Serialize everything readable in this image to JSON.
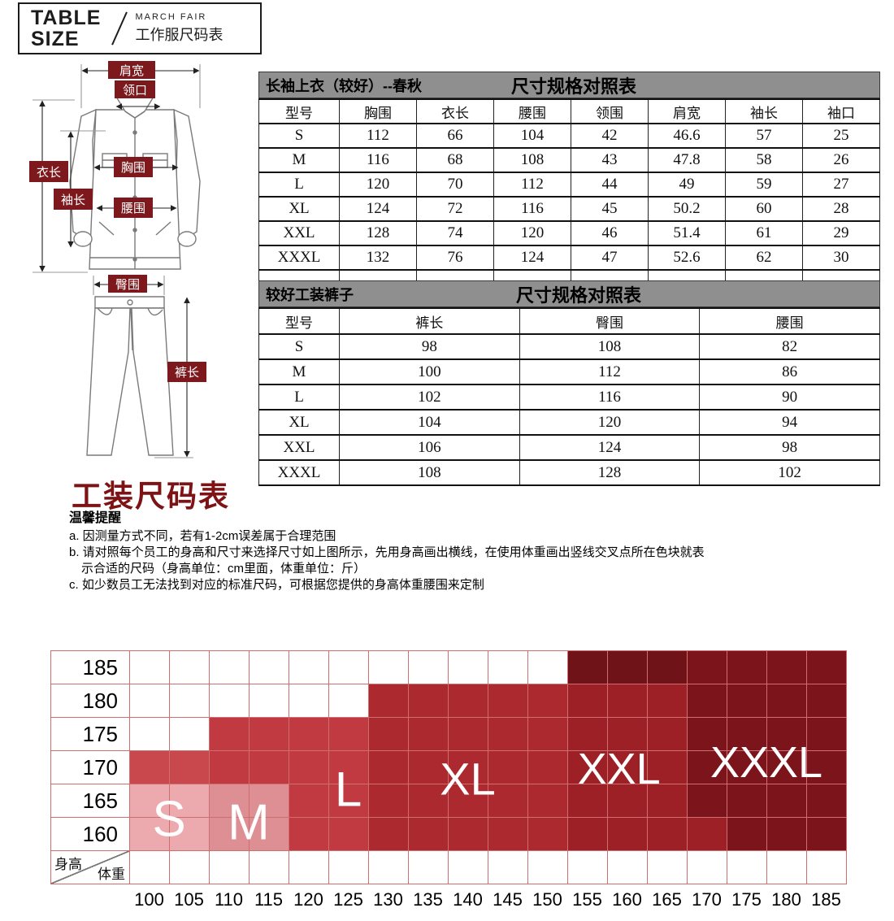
{
  "logo": {
    "line1": "TABLE",
    "line2": "SIZE",
    "brand": "MARCH FAIR",
    "subtitle": "工作服尺码表"
  },
  "diagram": {
    "labels": {
      "shoulder": "肩宽",
      "collar": "领口",
      "length": "衣长",
      "sleeve": "袖长",
      "chest": "胸围",
      "waist": "腰围",
      "hip": "臀围",
      "pants_length": "裤长"
    }
  },
  "table1": {
    "title_left": "长袖上衣（较好）--春秋",
    "title_center": "尺寸规格对照表",
    "headers": [
      "型号",
      "胸围",
      "衣长",
      "腰围",
      "领围",
      "肩宽",
      "袖长",
      "袖口"
    ],
    "rows": [
      [
        "S",
        "112",
        "66",
        "104",
        "42",
        "46.6",
        "57",
        "25"
      ],
      [
        "M",
        "116",
        "68",
        "108",
        "43",
        "47.8",
        "58",
        "26"
      ],
      [
        "L",
        "120",
        "70",
        "112",
        "44",
        "49",
        "59",
        "27"
      ],
      [
        "XL",
        "124",
        "72",
        "116",
        "45",
        "50.2",
        "60",
        "28"
      ],
      [
        "XXL",
        "128",
        "74",
        "120",
        "46",
        "51.4",
        "61",
        "29"
      ],
      [
        "XXXL",
        "132",
        "76",
        "124",
        "47",
        "52.6",
        "62",
        "30"
      ],
      [
        "",
        "",
        "",
        "",
        "",
        "",
        "",
        ""
      ]
    ]
  },
  "table2": {
    "title_left": "较好工装裤子",
    "title_center": "尺寸规格对照表",
    "headers": [
      "型号",
      "裤长",
      "臀围",
      "腰围"
    ],
    "rows": [
      [
        "S",
        "98",
        "108",
        "82"
      ],
      [
        "M",
        "100",
        "112",
        "86"
      ],
      [
        "L",
        "102",
        "116",
        "90"
      ],
      [
        "XL",
        "104",
        "120",
        "94"
      ],
      [
        "XXL",
        "106",
        "124",
        "98"
      ],
      [
        "XXXL",
        "108",
        "128",
        "102"
      ]
    ]
  },
  "section": {
    "heading": "工装尺码表",
    "notice_title": "温馨提醒",
    "notes": [
      "a. 因测量方式不同，若有1-2cm误差属于合理范围",
      "b. 请对照每个员工的身高和尺寸来选择尺寸如上图所示，先用身高画出横线，在使用体重画出竖线交叉点所在色块就表",
      "示合适的尺码（身高单位：cm里面，体重单位：斤）",
      "c. 如少数员工无法找到对应的标准尺码，可根据您提供的身高体重腰围来定制"
    ]
  },
  "chart_data": {
    "type": "heatmap",
    "x_axis_label": "体重",
    "y_axis_label": "身高",
    "x_values": [
      100,
      105,
      110,
      115,
      120,
      125,
      130,
      135,
      140,
      145,
      150,
      155,
      160,
      165,
      170,
      175,
      180,
      185
    ],
    "y_values": [
      185,
      180,
      175,
      170,
      165,
      160
    ],
    "legend_note": "cell codes: 0 empty, 1 S, 2 M, 3 S/L bright, 4 L, 5 XL, 6 XXL, 7 XXXL, 8 dark top band",
    "palette": {
      "0": "#ffffff",
      "1": "#ecaaae",
      "2": "#de8f94",
      "3": "#c9484e",
      "4": "#c13a41",
      "5": "#ac2930",
      "6": "#9c2026",
      "7": "#7b151b",
      "8": "#6f1318"
    },
    "matrix": [
      [
        0,
        0,
        0,
        0,
        0,
        0,
        0,
        0,
        0,
        0,
        0,
        8,
        8,
        8,
        7,
        7,
        7,
        7
      ],
      [
        0,
        0,
        0,
        0,
        0,
        0,
        5,
        5,
        5,
        5,
        5,
        6,
        6,
        6,
        7,
        7,
        7,
        7
      ],
      [
        0,
        0,
        4,
        4,
        4,
        4,
        5,
        5,
        5,
        5,
        5,
        6,
        6,
        6,
        7,
        7,
        7,
        7
      ],
      [
        3,
        3,
        4,
        4,
        4,
        4,
        5,
        5,
        5,
        5,
        5,
        6,
        6,
        6,
        7,
        7,
        7,
        7
      ],
      [
        1,
        1,
        2,
        2,
        4,
        4,
        5,
        5,
        5,
        5,
        5,
        6,
        6,
        6,
        7,
        7,
        7,
        7
      ],
      [
        1,
        1,
        2,
        2,
        4,
        4,
        5,
        5,
        5,
        5,
        5,
        6,
        6,
        6,
        6,
        7,
        7,
        7
      ]
    ],
    "size_labels": [
      {
        "text": "S",
        "u": 1.0,
        "r": 4.55,
        "font": 62
      },
      {
        "text": "M",
        "u": 3.0,
        "r": 4.65,
        "font": 62
      },
      {
        "text": "L",
        "u": 5.5,
        "r": 3.65,
        "font": 60
      },
      {
        "text": "XL",
        "u": 8.5,
        "r": 3.35,
        "font": 56
      },
      {
        "text": "XXL",
        "u": 12.3,
        "r": 3.05,
        "font": 54
      },
      {
        "text": "XXXL",
        "u": 16.0,
        "r": 2.85,
        "font": 54
      }
    ]
  }
}
